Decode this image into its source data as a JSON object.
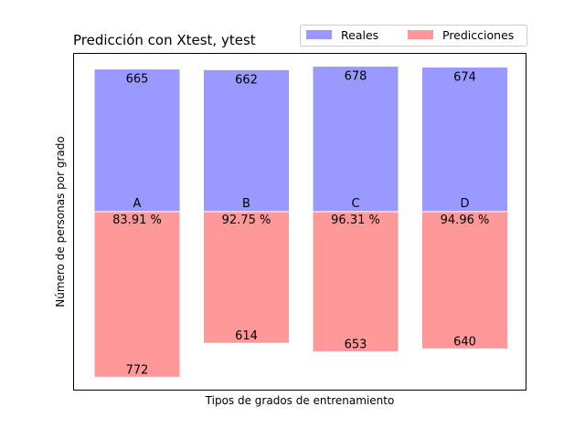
{
  "chart_data": {
    "type": "bar",
    "title": "Predicción con Xtest, ytest",
    "xlabel": "Tipos de grados de entrenamiento",
    "ylabel": "Número de personas por grado",
    "categories": [
      "A",
      "B",
      "C",
      "D"
    ],
    "series": [
      {
        "name": "Reales",
        "values": [
          665,
          662,
          678,
          674
        ],
        "color": "#9999ff",
        "direction": "up"
      },
      {
        "name": "Predicciones",
        "values": [
          772,
          614,
          653,
          640
        ],
        "color": "#ff9999",
        "direction": "down"
      }
    ],
    "accuracy_labels": [
      "83.91 %",
      "92.75 %",
      "96.31 %",
      "94.96 %"
    ],
    "ylim": [
      -830,
      740
    ],
    "grid": false,
    "legend_position": "top-right"
  }
}
